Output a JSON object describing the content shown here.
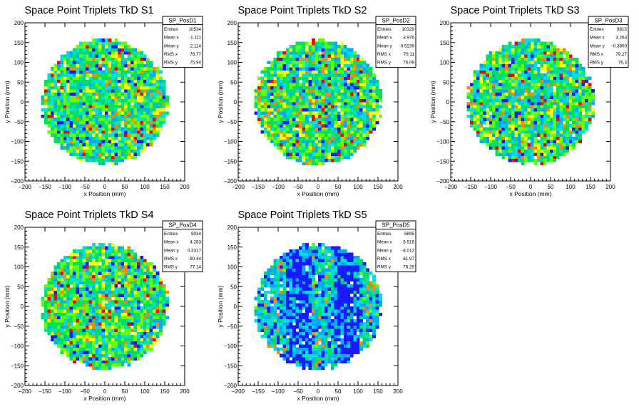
{
  "colors": {
    "background": "#ffffff",
    "axis": "#000000",
    "palette": [
      "#1a1aff",
      "#00aaff",
      "#00e0e0",
      "#00e060",
      "#66ff00",
      "#ffff00",
      "#ff8800",
      "#ff0000"
    ]
  },
  "chart_data": [
    {
      "type": "heatmap",
      "title": "Space Point Triplets TkD S1",
      "xlabel": "x Position (mm)",
      "ylabel": "y Position (mm)",
      "xlim": [
        -200,
        200
      ],
      "ylim": [
        -200,
        200
      ],
      "xticks": [
        -200,
        -150,
        -100,
        -50,
        0,
        50,
        100,
        150,
        200
      ],
      "yticks": [
        -200,
        -150,
        -100,
        -50,
        0,
        50,
        100,
        150,
        200
      ],
      "xtick_labels": [
        "−200",
        "−150",
        "−100",
        "−50",
        "0",
        "50",
        "100",
        "150",
        "200"
      ],
      "ytick_labels": [
        "−200",
        "−150",
        "−100",
        "−50",
        "0",
        "50",
        "100",
        "150",
        "200"
      ],
      "disk": {
        "center_x": 0,
        "center_y": 0,
        "radius": 158
      },
      "stats_box": {
        "name": "SP_PosD1",
        "rows": [
          {
            "label": "Entries",
            "value": "10534"
          },
          {
            "label": "Mean x",
            "value": "1.111"
          },
          {
            "label": "Mean y",
            "value": "2.114"
          },
          {
            "label": "RMS x",
            "value": "78.77"
          },
          {
            "label": "RMS y",
            "value": "75.94"
          }
        ]
      }
    },
    {
      "type": "heatmap",
      "title": "Space Point Triplets TkD S2",
      "xlabel": "x Position (mm)",
      "ylabel": "y Position (mm)",
      "xlim": [
        -200,
        200
      ],
      "ylim": [
        -200,
        200
      ],
      "xticks": [
        -200,
        -150,
        -100,
        -50,
        0,
        50,
        100,
        150,
        200
      ],
      "yticks": [
        -200,
        -150,
        -100,
        -50,
        0,
        50,
        100,
        150,
        200
      ],
      "xtick_labels": [
        "−200",
        "−150",
        "−100",
        "−50",
        "0",
        "50",
        "100",
        "150",
        "200"
      ],
      "ytick_labels": [
        "−200",
        "−150",
        "−100",
        "−50",
        "0",
        "50",
        "100",
        "150",
        "200"
      ],
      "disk": {
        "center_x": 0,
        "center_y": 0,
        "radius": 158
      },
      "stats_box": {
        "name": "SP_PosD2",
        "rows": [
          {
            "label": "Entries",
            "value": "10329"
          },
          {
            "label": "Mean x",
            "value": "3.976"
          },
          {
            "label": "Mean y",
            "value": "-0.5239"
          },
          {
            "label": "RMS x",
            "value": "79.11"
          },
          {
            "label": "RMS y",
            "value": "76.09"
          }
        ]
      }
    },
    {
      "type": "heatmap",
      "title": "Space Point Triplets TkD S3",
      "xlabel": "x Position (mm)",
      "ylabel": "y Position (mm)",
      "xlim": [
        -200,
        200
      ],
      "ylim": [
        -200,
        200
      ],
      "xticks": [
        -200,
        -150,
        -100,
        -50,
        0,
        50,
        100,
        150,
        200
      ],
      "yticks": [
        -200,
        -150,
        -100,
        -50,
        0,
        50,
        100,
        150,
        200
      ],
      "xtick_labels": [
        "−200",
        "−150",
        "−100",
        "−50",
        "0",
        "50",
        "100",
        "150",
        "200"
      ],
      "ytick_labels": [
        "−200",
        "−150",
        "−100",
        "−50",
        "0",
        "50",
        "100",
        "150",
        "200"
      ],
      "disk": {
        "center_x": 0,
        "center_y": 0,
        "radius": 158
      },
      "stats_box": {
        "name": "SP_PosD3",
        "rows": [
          {
            "label": "Entries",
            "value": "9815"
          },
          {
            "label": "Mean x",
            "value": "3.263"
          },
          {
            "label": "Mean y",
            "value": "-0.3803"
          },
          {
            "label": "RMS x",
            "value": "79.27"
          },
          {
            "label": "RMS y",
            "value": "76.3"
          }
        ]
      }
    },
    {
      "type": "heatmap",
      "title": "Space Point Triplets TkD S4",
      "xlabel": "x Position (mm)",
      "ylabel": "y Position (mm)",
      "xlim": [
        -200,
        200
      ],
      "ylim": [
        -200,
        200
      ],
      "xticks": [
        -200,
        -150,
        -100,
        -50,
        0,
        50,
        100,
        150,
        200
      ],
      "yticks": [
        -200,
        -150,
        -100,
        -50,
        0,
        50,
        100,
        150,
        200
      ],
      "xtick_labels": [
        "−200",
        "−150",
        "−100",
        "−50",
        "0",
        "50",
        "100",
        "150",
        "200"
      ],
      "ytick_labels": [
        "−200",
        "−150",
        "−100",
        "−50",
        "0",
        "50",
        "100",
        "150",
        "200"
      ],
      "disk": {
        "center_x": 0,
        "center_y": 0,
        "radius": 158
      },
      "stats_box": {
        "name": "SP_PosD4",
        "rows": [
          {
            "label": "Entries",
            "value": "9034"
          },
          {
            "label": "Mean x",
            "value": "4.283"
          },
          {
            "label": "Mean y",
            "value": "0.3317"
          },
          {
            "label": "RMS x",
            "value": "80.44"
          },
          {
            "label": "RMS y",
            "value": "77.14"
          }
        ]
      }
    },
    {
      "type": "heatmap",
      "title": "Space Point Triplets TkD S5",
      "xlabel": "x Position (mm)",
      "ylabel": "y Position (mm)",
      "xlim": [
        -200,
        200
      ],
      "ylim": [
        -200,
        200
      ],
      "xticks": [
        -200,
        -150,
        -100,
        -50,
        0,
        50,
        100,
        150,
        200
      ],
      "yticks": [
        -200,
        -150,
        -100,
        -50,
        0,
        50,
        100,
        150,
        200
      ],
      "xtick_labels": [
        "−200",
        "−150",
        "−100",
        "−50",
        "0",
        "50",
        "100",
        "150",
        "200"
      ],
      "ytick_labels": [
        "−200",
        "−150",
        "−100",
        "−50",
        "0",
        "50",
        "100",
        "150",
        "200"
      ],
      "disk": {
        "center_x": 0,
        "center_y": 0,
        "radius": 158
      },
      "low_density_bands_x": [
        [
          -80,
          -20
        ],
        [
          40,
          100
        ]
      ],
      "stats_box": {
        "name": "SP_PosD5",
        "rows": [
          {
            "label": "Entries",
            "value": "6895"
          },
          {
            "label": "Mean x",
            "value": "8.516"
          },
          {
            "label": "Mean y",
            "value": "-8.012"
          },
          {
            "label": "RMS x",
            "value": "81.97"
          },
          {
            "label": "RMS y",
            "value": "76.29"
          }
        ]
      }
    }
  ]
}
